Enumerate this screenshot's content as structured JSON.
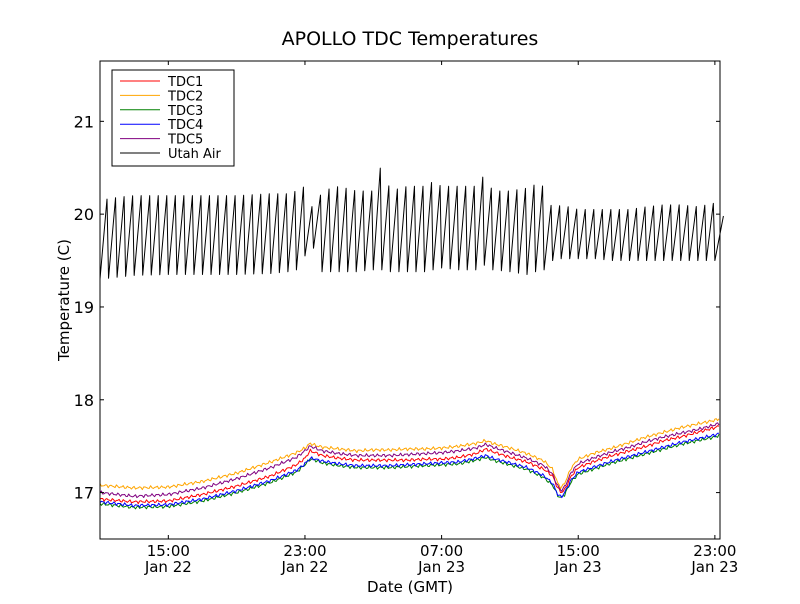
{
  "chart_data": {
    "type": "line",
    "title": "APOLLO TDC Temperatures",
    "xlabel": "Date (GMT)",
    "ylabel": "Temperature (C)",
    "x_unit": "hours since Jan 22 11:00 GMT",
    "xlim": [
      0,
      36.3
    ],
    "ylim": [
      16.5,
      21.65
    ],
    "grid": false,
    "legend_position": "top-left",
    "y_ticks": [
      17,
      18,
      19,
      20,
      21
    ],
    "x_ticks": [
      {
        "x": 4,
        "time": "15:00",
        "date": "Jan 22"
      },
      {
        "x": 12,
        "time": "23:00",
        "date": "Jan 22"
      },
      {
        "x": 20,
        "time": "07:00",
        "date": "Jan 23"
      },
      {
        "x": 28,
        "time": "15:00",
        "date": "Jan 23"
      },
      {
        "x": 36,
        "time": "23:00",
        "date": "Jan 23"
      }
    ],
    "series": [
      {
        "name": "TDC1",
        "color": "#ff0000",
        "x": [
          0,
          2,
          4,
          6,
          8,
          10,
          11.5,
          12,
          12.3,
          12.6,
          13,
          14,
          15,
          16,
          17,
          18,
          19,
          20,
          21,
          22,
          22.6,
          23,
          24,
          25,
          26,
          26.5,
          26.8,
          27,
          27.2,
          27.6,
          28,
          29,
          30,
          31,
          32,
          33,
          34,
          35,
          36,
          36.3
        ],
        "values": [
          16.93,
          16.9,
          16.91,
          16.98,
          17.07,
          17.18,
          17.3,
          17.37,
          17.45,
          17.43,
          17.4,
          17.37,
          17.35,
          17.35,
          17.35,
          17.35,
          17.36,
          17.36,
          17.38,
          17.42,
          17.47,
          17.44,
          17.38,
          17.33,
          17.25,
          17.18,
          17.05,
          17.0,
          17.03,
          17.18,
          17.27,
          17.34,
          17.4,
          17.45,
          17.5,
          17.56,
          17.6,
          17.65,
          17.7,
          17.72
        ]
      },
      {
        "name": "TDC2",
        "color": "#ffa500",
        "x": [
          0,
          2,
          4,
          6,
          8,
          10,
          11.5,
          12,
          12.3,
          12.6,
          13,
          14,
          15,
          16,
          17,
          18,
          19,
          20,
          21,
          22,
          22.6,
          23,
          24,
          25,
          26,
          26.5,
          26.8,
          27,
          27.2,
          27.6,
          28,
          29,
          30,
          31,
          32,
          33,
          34,
          35,
          36,
          36.3
        ],
        "values": [
          17.08,
          17.05,
          17.06,
          17.12,
          17.21,
          17.33,
          17.43,
          17.48,
          17.53,
          17.51,
          17.49,
          17.47,
          17.45,
          17.46,
          17.46,
          17.47,
          17.47,
          17.48,
          17.5,
          17.53,
          17.56,
          17.53,
          17.48,
          17.42,
          17.34,
          17.25,
          17.1,
          17.05,
          17.1,
          17.27,
          17.36,
          17.43,
          17.48,
          17.54,
          17.6,
          17.65,
          17.7,
          17.74,
          17.78,
          17.8
        ]
      },
      {
        "name": "TDC3",
        "color": "#008000",
        "x": [
          0,
          2,
          4,
          6,
          8,
          10,
          11.5,
          12,
          12.3,
          12.6,
          13,
          14,
          15,
          16,
          17,
          18,
          19,
          20,
          21,
          22,
          22.6,
          23,
          24,
          25,
          26,
          26.5,
          26.8,
          27,
          27.2,
          27.6,
          28,
          29,
          30,
          31,
          32,
          33,
          34,
          35,
          36,
          36.3
        ],
        "values": [
          16.88,
          16.84,
          16.85,
          16.91,
          17.0,
          17.11,
          17.22,
          17.3,
          17.36,
          17.35,
          17.32,
          17.29,
          17.27,
          17.27,
          17.27,
          17.28,
          17.29,
          17.3,
          17.31,
          17.35,
          17.38,
          17.35,
          17.3,
          17.25,
          17.16,
          17.08,
          16.97,
          16.94,
          16.98,
          17.12,
          17.2,
          17.26,
          17.32,
          17.37,
          17.42,
          17.47,
          17.52,
          17.56,
          17.6,
          17.62
        ]
      },
      {
        "name": "TDC4",
        "color": "#0000ff",
        "x": [
          0,
          2,
          4,
          6,
          8,
          10,
          11.5,
          12,
          12.3,
          12.6,
          13,
          14,
          15,
          16,
          17,
          18,
          19,
          20,
          21,
          22,
          22.6,
          23,
          24,
          25,
          26,
          26.5,
          26.8,
          27,
          27.2,
          27.6,
          28,
          29,
          30,
          31,
          32,
          33,
          34,
          35,
          36,
          36.3
        ],
        "values": [
          16.9,
          16.86,
          16.87,
          16.93,
          17.02,
          17.13,
          17.24,
          17.31,
          17.37,
          17.36,
          17.34,
          17.31,
          17.29,
          17.29,
          17.29,
          17.3,
          17.31,
          17.32,
          17.33,
          17.37,
          17.4,
          17.37,
          17.32,
          17.27,
          17.18,
          17.1,
          16.98,
          16.95,
          17.0,
          17.14,
          17.22,
          17.28,
          17.34,
          17.39,
          17.44,
          17.49,
          17.54,
          17.58,
          17.62,
          17.64
        ]
      },
      {
        "name": "TDC5",
        "color": "#800080",
        "x": [
          0,
          2,
          4,
          6,
          8,
          10,
          11.5,
          12,
          12.3,
          12.6,
          13,
          14,
          15,
          16,
          17,
          18,
          19,
          20,
          21,
          22,
          22.6,
          23,
          24,
          25,
          26,
          26.5,
          26.8,
          27,
          27.2,
          27.6,
          28,
          29,
          30,
          31,
          32,
          33,
          34,
          35,
          36,
          36.3
        ],
        "values": [
          17.0,
          16.96,
          16.98,
          17.05,
          17.15,
          17.27,
          17.38,
          17.45,
          17.5,
          17.48,
          17.45,
          17.42,
          17.4,
          17.4,
          17.4,
          17.41,
          17.42,
          17.43,
          17.45,
          17.48,
          17.52,
          17.49,
          17.43,
          17.37,
          17.29,
          17.2,
          17.07,
          17.02,
          17.06,
          17.22,
          17.31,
          17.38,
          17.44,
          17.49,
          17.55,
          17.6,
          17.64,
          17.68,
          17.73,
          17.75
        ]
      },
      {
        "name": "Utah Air",
        "color": "#000000",
        "style": "oscillating",
        "cycle_hours": 0.5,
        "x": [
          0,
          1,
          2,
          4,
          6,
          8,
          10,
          11,
          11.5,
          12,
          12.3,
          12.6,
          13,
          14,
          15,
          16,
          16.5,
          17,
          18,
          19,
          19.5,
          20,
          21,
          22,
          22.5,
          23,
          24,
          25,
          25.5,
          26,
          26.5,
          27,
          28,
          29,
          30,
          31,
          32,
          33,
          34,
          35,
          36,
          36.3
        ],
        "highs": [
          20.15,
          20.18,
          20.2,
          20.2,
          20.2,
          20.2,
          20.22,
          20.22,
          20.25,
          20.3,
          20.1,
          20.05,
          20.25,
          20.3,
          20.25,
          20.25,
          20.55,
          20.25,
          20.3,
          20.3,
          20.35,
          20.3,
          20.3,
          20.3,
          20.42,
          20.25,
          20.25,
          20.28,
          20.32,
          20.3,
          20.05,
          20.1,
          20.05,
          20.05,
          20.05,
          20.05,
          20.08,
          20.1,
          20.1,
          20.08,
          20.12,
          20.22
        ],
        "lows": [
          19.3,
          19.32,
          19.34,
          19.35,
          19.35,
          19.35,
          19.36,
          19.38,
          19.4,
          19.55,
          19.7,
          19.6,
          19.38,
          19.38,
          19.38,
          19.4,
          19.4,
          19.38,
          19.38,
          19.38,
          19.4,
          19.42,
          19.4,
          19.4,
          19.45,
          19.4,
          19.38,
          19.35,
          19.38,
          19.4,
          19.5,
          19.52,
          19.52,
          19.52,
          19.5,
          19.5,
          19.5,
          19.5,
          19.5,
          19.5,
          19.5,
          19.98
        ]
      }
    ]
  }
}
